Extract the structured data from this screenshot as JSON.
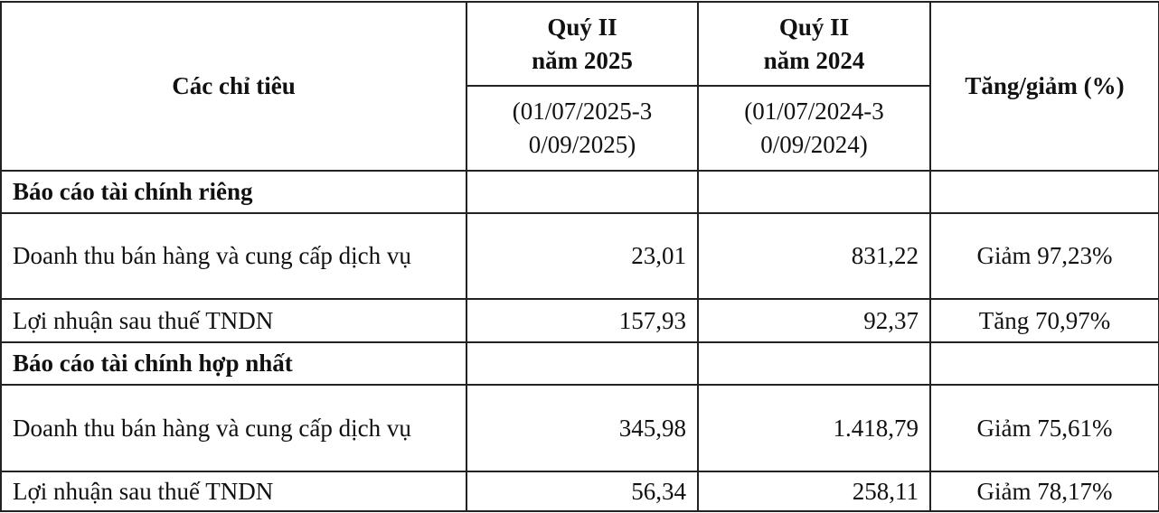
{
  "table": {
    "headers": {
      "indicator": "Các chỉ tiêu",
      "col2_title": "Quý II năm 2025",
      "col2_period": "(01/07/2025-30/09/2025)",
      "col3_title": "Quý II năm 2024",
      "col3_period": "(01/07/2024-30/09/2024)",
      "change": "Tăng/giảm (%)"
    },
    "sections": [
      {
        "title": "Báo cáo tài chính riêng",
        "rows": [
          {
            "label": "Doanh thu bán hàng và cung cấp dịch vụ",
            "q2_2025": "23,01",
            "q2_2024": "831,22",
            "change": "Giảm 97,23%"
          },
          {
            "label": "Lợi nhuận sau thuế TNDN",
            "q2_2025": "157,93",
            "q2_2024": "92,37",
            "change": "Tăng 70,97%"
          }
        ]
      },
      {
        "title": "Báo cáo tài chính hợp nhất",
        "rows": [
          {
            "label": "Doanh thu bán hàng và cung cấp dịch vụ",
            "q2_2025": "345,98",
            "q2_2024": "1.418,79",
            "change": "Giảm 75,61%"
          },
          {
            "label": "Lợi nhuận sau thuế TNDN",
            "q2_2025": "56,34",
            "q2_2024": "258,11",
            "change": "Giảm 78,17%"
          }
        ]
      }
    ]
  }
}
